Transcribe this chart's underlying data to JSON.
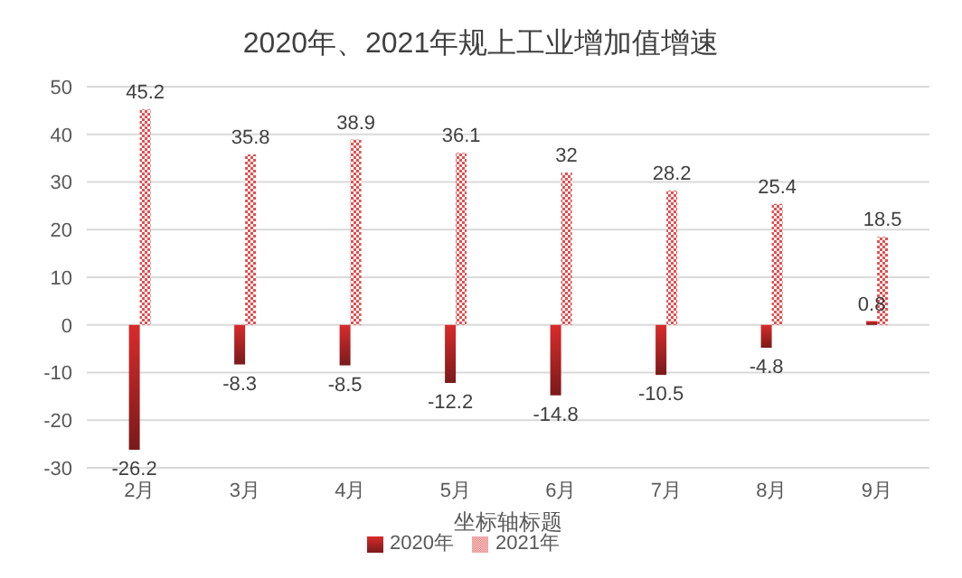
{
  "chart_data": {
    "type": "bar",
    "title": "2020年、2021年规上工业增加值增速",
    "xlabel": "坐标轴标题",
    "categories": [
      "2月",
      "3月",
      "4月",
      "5月",
      "6月",
      "7月",
      "8月",
      "9月"
    ],
    "series": [
      {
        "name": "2020年",
        "color": "#d92b2b",
        "values": [
          -26.2,
          -8.3,
          -8.5,
          -12.2,
          -14.8,
          -10.5,
          -4.8,
          0.8
        ]
      },
      {
        "name": "2021年",
        "color": "#e05050",
        "values": [
          45.2,
          35.8,
          38.9,
          36.1,
          32,
          28.2,
          25.4,
          18.5
        ]
      }
    ],
    "ylim": [
      -30,
      50
    ],
    "yticks": [
      -30,
      -20,
      -10,
      0,
      10,
      20,
      30,
      40,
      50
    ],
    "grid": "y",
    "legend": "bottom",
    "data_labels": true
  }
}
